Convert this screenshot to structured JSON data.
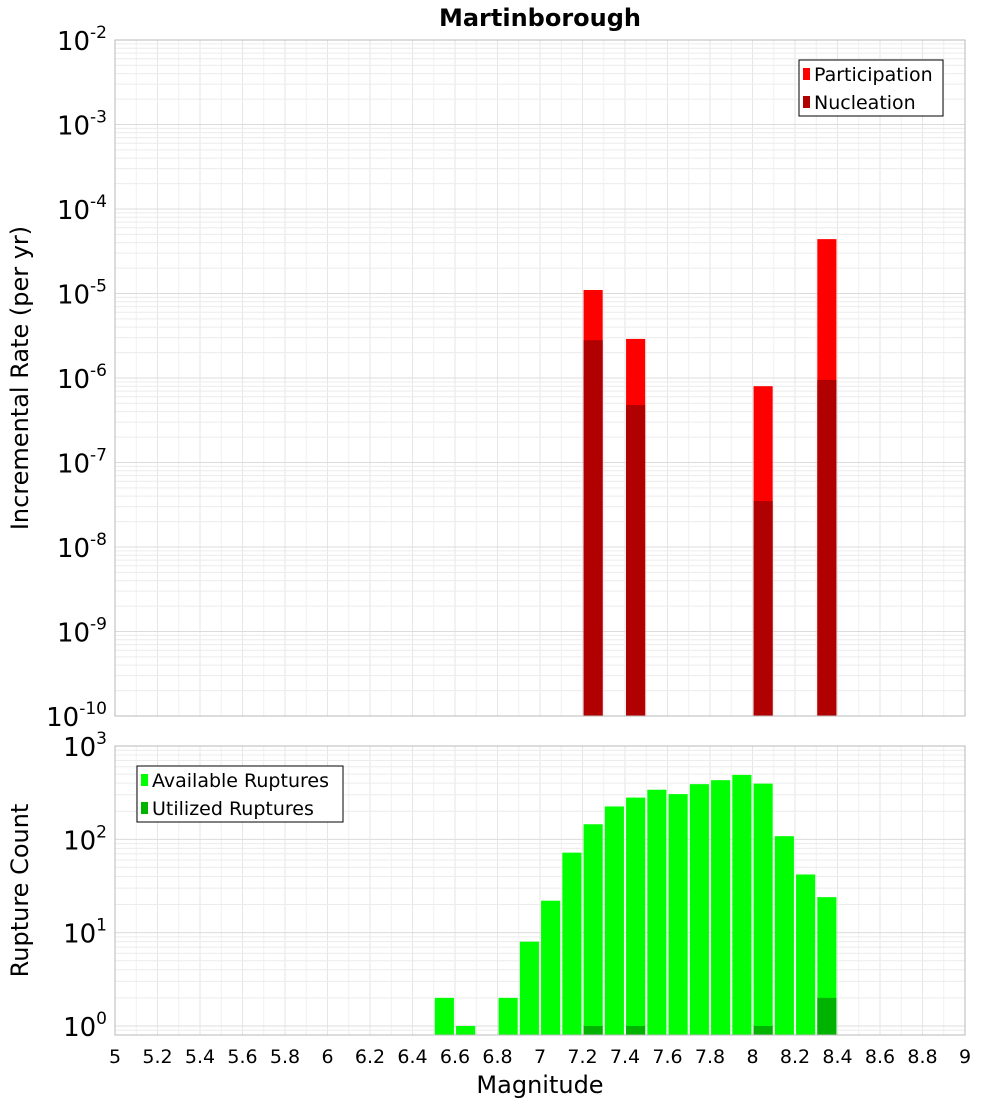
{
  "chart_data": [
    {
      "type": "bar",
      "title": "Martinborough",
      "xlabel": "",
      "ylabel": "Incremental Rate (per yr)",
      "xlim": [
        5,
        9
      ],
      "ylim": [
        1e-10,
        0.01
      ],
      "y_scale": "log",
      "grid": true,
      "legend_position": "top-right",
      "bar_width": 0.09,
      "x_ticks": [],
      "y_ticks": [
        {
          "base": "10",
          "exp": "-2",
          "value": 0.01
        },
        {
          "base": "10",
          "exp": "-3",
          "value": 0.001
        },
        {
          "base": "10",
          "exp": "-4",
          "value": 0.0001
        },
        {
          "base": "10",
          "exp": "-5",
          "value": 1e-05
        },
        {
          "base": "10",
          "exp": "-6",
          "value": 1e-06
        },
        {
          "base": "10",
          "exp": "-7",
          "value": 1e-07
        },
        {
          "base": "10",
          "exp": "-8",
          "value": 1e-08
        },
        {
          "base": "10",
          "exp": "-9",
          "value": 1e-09
        },
        {
          "base": "10",
          "exp": "-10",
          "value": 1e-10
        }
      ],
      "series": [
        {
          "name": "Participation",
          "color": "#ff0000",
          "x": [
            7.25,
            7.45,
            8.05,
            8.35
          ],
          "values": [
            1.1e-05,
            2.9e-06,
            8e-07,
            4.4e-05
          ]
        },
        {
          "name": "Nucleation",
          "color": "#b00000",
          "x": [
            7.25,
            7.45,
            8.05,
            8.35
          ],
          "values": [
            2.8e-06,
            4.8e-07,
            3.5e-08,
            9.5e-07
          ]
        }
      ]
    },
    {
      "type": "bar",
      "title": "",
      "xlabel": "Magnitude",
      "ylabel": "Rupture Count",
      "xlim": [
        5,
        9
      ],
      "ylim": [
        0.8,
        1000
      ],
      "y_scale": "log",
      "grid": true,
      "legend_position": "top-left",
      "bar_width": 0.09,
      "x_ticks": [
        "5",
        "5.2",
        "5.4",
        "5.6",
        "5.8",
        "6",
        "6.2",
        "6.4",
        "6.6",
        "6.8",
        "7",
        "7.2",
        "7.4",
        "7.6",
        "7.8",
        "8",
        "8.2",
        "8.4",
        "8.6",
        "8.8",
        "9"
      ],
      "y_ticks": [
        {
          "base": "10",
          "exp": "3",
          "value": 1000
        },
        {
          "base": "10",
          "exp": "2",
          "value": 100
        },
        {
          "base": "10",
          "exp": "1",
          "value": 10
        },
        {
          "base": "10",
          "exp": "0",
          "value": 1
        }
      ],
      "series": [
        {
          "name": "Available Ruptures",
          "color": "#00ff00",
          "x": [
            6.55,
            6.65,
            6.85,
            6.95,
            7.05,
            7.15,
            7.25,
            7.35,
            7.45,
            7.55,
            7.65,
            7.75,
            7.85,
            7.95,
            8.05,
            8.15,
            8.25,
            8.35
          ],
          "values": [
            2,
            1,
            2,
            8,
            22,
            72,
            145,
            225,
            280,
            340,
            305,
            390,
            430,
            490,
            395,
            108,
            42,
            24
          ]
        },
        {
          "name": "Utilized Ruptures",
          "color": "#00b300",
          "x": [
            7.25,
            7.45,
            8.05,
            8.35
          ],
          "values": [
            1,
            1,
            1,
            2
          ]
        }
      ]
    }
  ]
}
